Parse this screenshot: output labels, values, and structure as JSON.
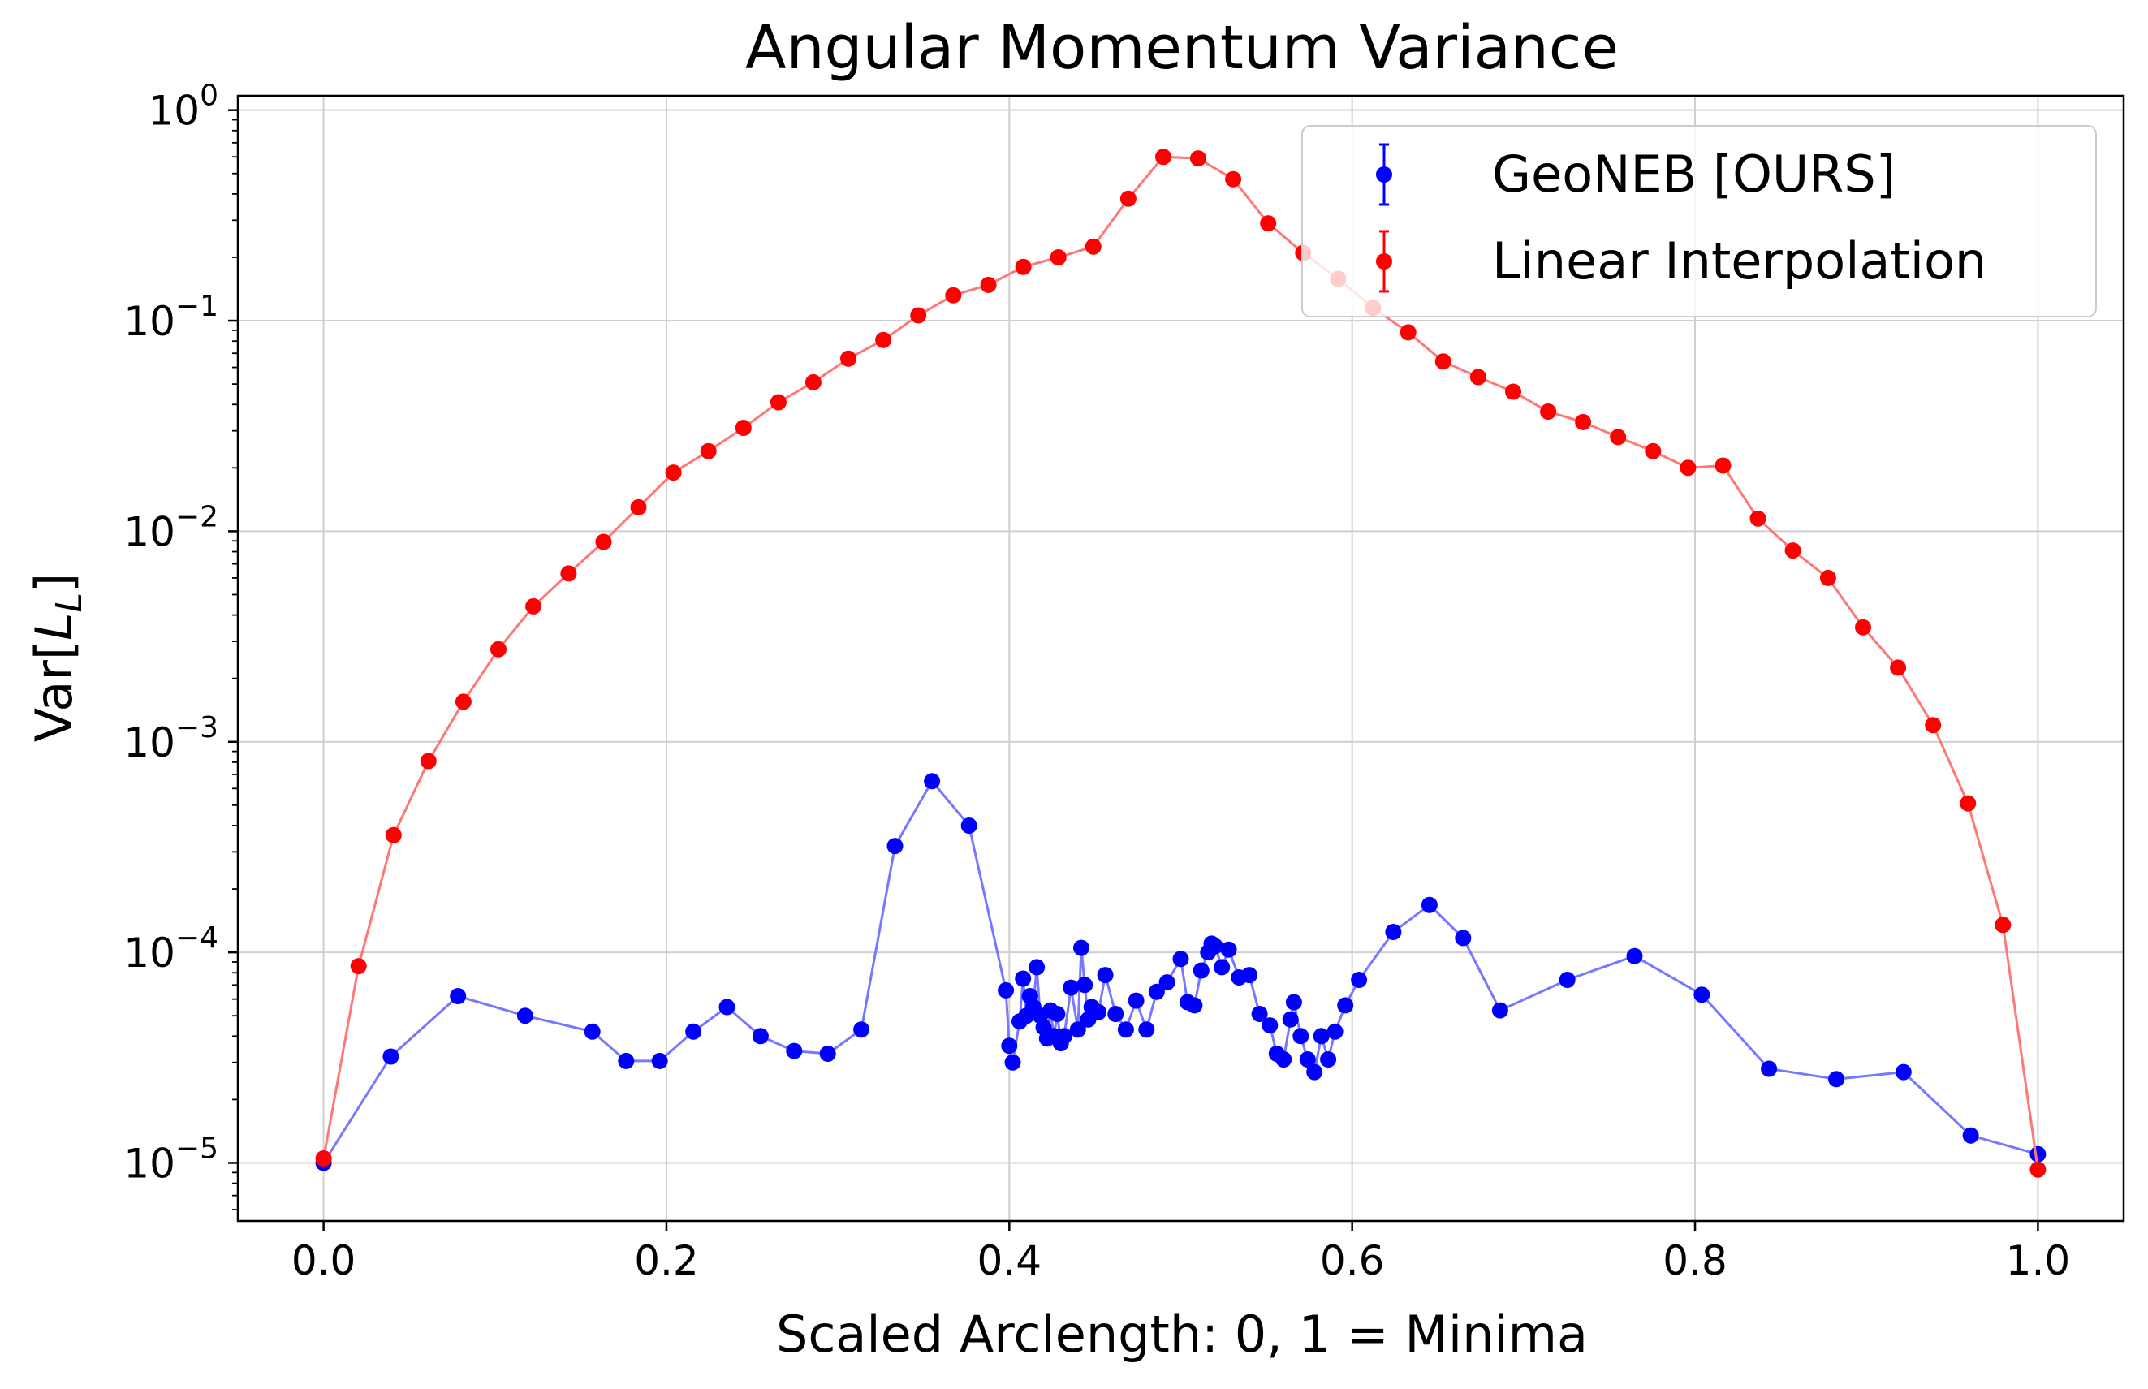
{
  "chart_data": {
    "type": "line",
    "title": "Angular Momentum Variance",
    "xlabel": "Scaled Arclength: 0, 1 = Minima",
    "ylabel": "Var[L_L]",
    "ylabel_main": "Var[",
    "ylabel_sub": "L",
    "ylabel_subscript": "L",
    "ylabel_close": "]",
    "yscale": "log",
    "xlim": [
      -0.05,
      1.05
    ],
    "ylim": [
      5.3e-06,
      1.17
    ],
    "grid": true,
    "legend_position": "top-right",
    "x_ticks": [
      {
        "value": 0.0,
        "label": "0.0"
      },
      {
        "value": 0.2,
        "label": "0.2"
      },
      {
        "value": 0.4,
        "label": "0.4"
      },
      {
        "value": 0.6,
        "label": "0.6"
      },
      {
        "value": 0.8,
        "label": "0.8"
      },
      {
        "value": 1.0,
        "label": "1.0"
      }
    ],
    "y_ticks": [
      {
        "value": 1e-05,
        "base": "10",
        "exp": "−5"
      },
      {
        "value": 0.0001,
        "base": "10",
        "exp": "−4"
      },
      {
        "value": 0.001,
        "base": "10",
        "exp": "−3"
      },
      {
        "value": 0.01,
        "base": "10",
        "exp": "−2"
      },
      {
        "value": 0.1,
        "base": "10",
        "exp": "−1"
      },
      {
        "value": 1.0,
        "base": "10",
        "exp": "0"
      }
    ],
    "series": [
      {
        "name": "GeoNEB [OURS]",
        "color": "#0000ff",
        "line_color": "#7777ff",
        "x": [
          0.0,
          0.0392,
          0.0784,
          0.1176,
          0.1568,
          0.1765,
          0.1961,
          0.2157,
          0.2353,
          0.2549,
          0.2745,
          0.2941,
          0.3137,
          0.3333,
          0.3549,
          0.3765,
          0.398,
          0.4,
          0.402,
          0.406,
          0.408,
          0.41,
          0.412,
          0.414,
          0.416,
          0.418,
          0.42,
          0.422,
          0.424,
          0.426,
          0.428,
          0.43,
          0.432,
          0.436,
          0.44,
          0.442,
          0.444,
          0.446,
          0.448,
          0.45,
          0.452,
          0.456,
          0.462,
          0.468,
          0.474,
          0.48,
          0.486,
          0.492,
          0.5,
          0.504,
          0.508,
          0.512,
          0.516,
          0.518,
          0.52,
          0.524,
          0.528,
          0.534,
          0.54,
          0.546,
          0.552,
          0.556,
          0.56,
          0.564,
          0.566,
          0.57,
          0.574,
          0.578,
          0.582,
          0.586,
          0.59,
          0.596,
          0.604,
          0.624,
          0.6451,
          0.6647,
          0.6863,
          0.7255,
          0.7647,
          0.8039,
          0.8431,
          0.8824,
          0.9216,
          0.9608,
          1.0
        ],
        "y": [
          1e-05,
          3.2e-05,
          6.2e-05,
          5e-05,
          4.2e-05,
          3.05e-05,
          3.05e-05,
          4.2e-05,
          5.5e-05,
          4e-05,
          3.4e-05,
          3.3e-05,
          4.3e-05,
          0.00032,
          0.00065,
          0.0004,
          6.6e-05,
          3.6e-05,
          3e-05,
          4.7e-05,
          7.5e-05,
          5e-05,
          6.2e-05,
          5.5e-05,
          8.5e-05,
          5e-05,
          4.4e-05,
          3.9e-05,
          5.3e-05,
          4e-05,
          5.1e-05,
          3.7e-05,
          4e-05,
          6.8e-05,
          4.3e-05,
          0.000105,
          7e-05,
          4.8e-05,
          5.5e-05,
          5.2e-05,
          5.2e-05,
          7.8e-05,
          5.1e-05,
          4.3e-05,
          5.9e-05,
          4.3e-05,
          6.5e-05,
          7.2e-05,
          9.3e-05,
          5.8e-05,
          5.6e-05,
          8.2e-05,
          0.0001,
          0.00011,
          0.000107,
          8.5e-05,
          0.000103,
          7.6e-05,
          7.8e-05,
          5.1e-05,
          4.5e-05,
          3.3e-05,
          3.1e-05,
          4.8e-05,
          5.8e-05,
          4e-05,
          3.1e-05,
          2.7e-05,
          4e-05,
          3.1e-05,
          4.2e-05,
          5.6e-05,
          7.4e-05,
          0.000125,
          0.000168,
          0.000117,
          5.3e-05,
          7.4e-05,
          9.6e-05,
          6.3e-05,
          2.8e-05,
          2.5e-05,
          2.7e-05,
          1.35e-05,
          1.1e-05
        ]
      },
      {
        "name": "Linear Interpolation",
        "color": "#ff0000",
        "line_color": "#ff7777",
        "x": [
          0.0,
          0.0204,
          0.0408,
          0.0612,
          0.0816,
          0.102,
          0.1224,
          0.1429,
          0.1633,
          0.1837,
          0.2041,
          0.2245,
          0.2449,
          0.2653,
          0.2857,
          0.3061,
          0.3265,
          0.3469,
          0.3673,
          0.3878,
          0.4082,
          0.4286,
          0.449,
          0.4694,
          0.4898,
          0.5102,
          0.5306,
          0.551,
          0.5714,
          0.5918,
          0.6122,
          0.6327,
          0.6531,
          0.6735,
          0.6939,
          0.7143,
          0.7347,
          0.7551,
          0.7755,
          0.7959,
          0.8163,
          0.8367,
          0.8571,
          0.8776,
          0.898,
          0.9184,
          0.9388,
          0.9592,
          0.9796,
          1.0
        ],
        "y": [
          1.05e-05,
          8.6e-05,
          0.00036,
          0.00081,
          0.00155,
          0.00275,
          0.0044,
          0.0063,
          0.0089,
          0.013,
          0.019,
          0.024,
          0.031,
          0.041,
          0.051,
          0.066,
          0.081,
          0.106,
          0.132,
          0.148,
          0.18,
          0.2,
          0.225,
          0.38,
          0.6,
          0.59,
          0.47,
          0.29,
          0.21,
          0.158,
          0.115,
          0.088,
          0.064,
          0.054,
          0.046,
          0.037,
          0.033,
          0.028,
          0.024,
          0.02,
          0.0205,
          0.0115,
          0.0081,
          0.006,
          0.0035,
          0.00225,
          0.0012,
          0.00051,
          0.000135,
          9.3e-06
        ]
      }
    ]
  }
}
